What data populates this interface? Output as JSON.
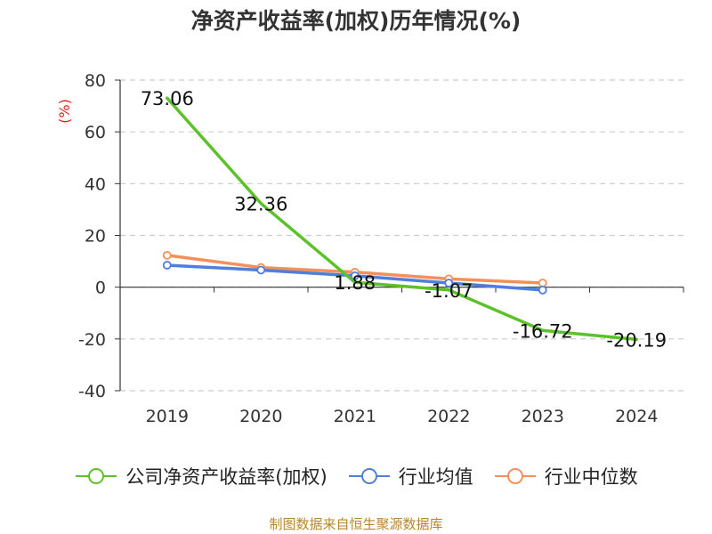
{
  "title": "净资产收益率(加权)历年情况(%)",
  "source": "制图数据来自恒生聚源数据库",
  "chart_data": {
    "type": "line",
    "title": "净资产收益率(加权)历年情况(%)",
    "ylabel": "(%)",
    "categories": [
      "2019",
      "2020",
      "2021",
      "2022",
      "2023",
      "2024"
    ],
    "ylim": [
      -40,
      80
    ],
    "yticks": [
      80,
      60,
      40,
      20,
      0,
      -20,
      -40
    ],
    "grid": true,
    "legend_position": "bottom",
    "series": [
      {
        "name": "公司净资产收益率(加权)",
        "color": "#5cc22a",
        "values": [
          73.06,
          32.36,
          1.88,
          -1.07,
          -16.72,
          -20.19
        ],
        "labels": [
          "73.06",
          "32.36",
          "1.88",
          "-1.07",
          "-16.72",
          "-20.19"
        ]
      },
      {
        "name": "行业均值",
        "color": "#4f7fdc",
        "values": [
          8.5,
          6.6,
          4.4,
          1.6,
          -1.1,
          null
        ]
      },
      {
        "name": "行业中位数",
        "color": "#f5905c",
        "values": [
          12.3,
          7.6,
          5.8,
          3.2,
          1.6,
          null
        ]
      }
    ]
  }
}
